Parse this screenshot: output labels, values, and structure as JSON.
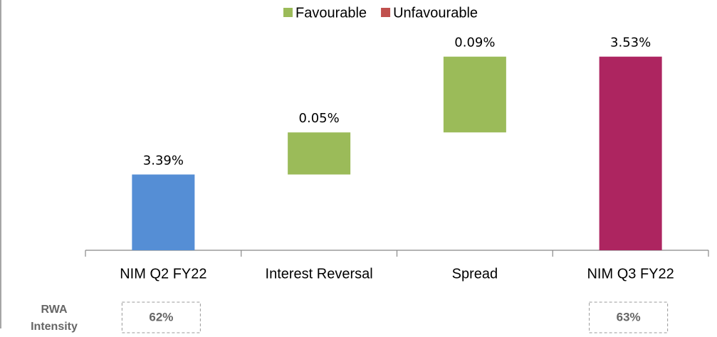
{
  "chart_data": {
    "type": "waterfall",
    "categories": [
      "NIM Q2 FY22",
      "Interest Reversal",
      "Spread",
      "NIM Q3 FY22"
    ],
    "values": [
      3.39,
      0.05,
      0.09,
      3.53
    ],
    "value_labels": [
      "3.39%",
      "0.05%",
      "0.09%",
      "3.53%"
    ],
    "colors": [
      "#558ed5",
      "#9bbb59",
      "#9bbb59",
      "#ad2560"
    ],
    "ylim": [
      3.3,
      3.55
    ],
    "legend": [
      {
        "name": "Favourable",
        "color": "#9bbb59"
      },
      {
        "name": "Unfavourable",
        "color": "#c0504d"
      }
    ],
    "rwa_intensity": {
      "label": "RWA Intensity",
      "values": [
        62,
        null,
        null,
        63
      ],
      "value_labels": [
        "62%",
        null,
        null,
        "63%"
      ]
    }
  }
}
